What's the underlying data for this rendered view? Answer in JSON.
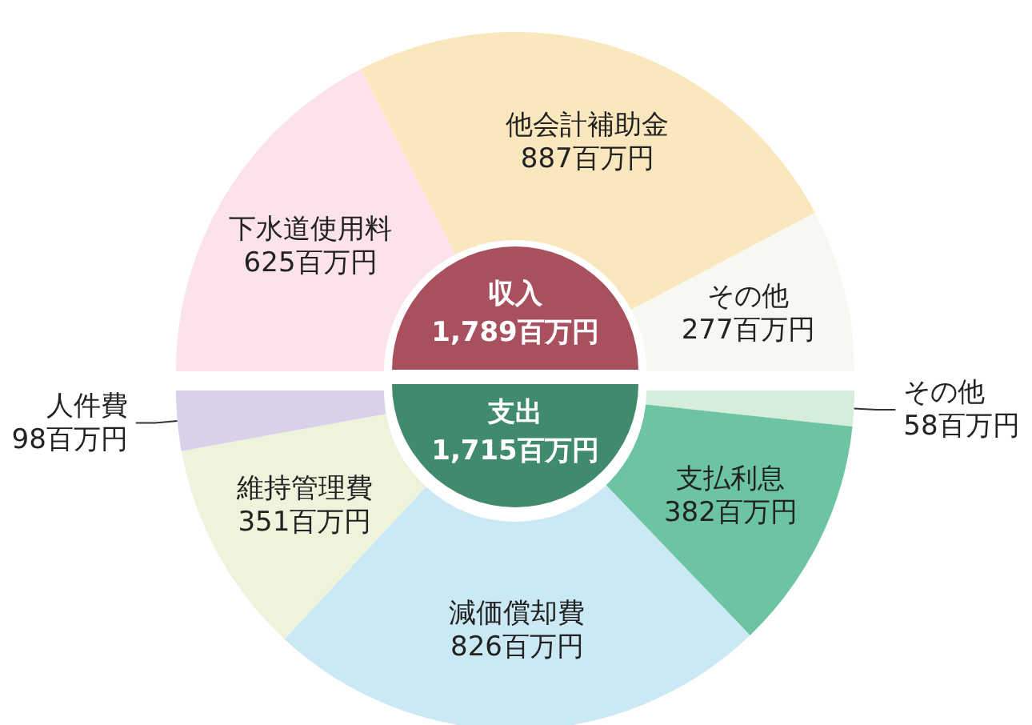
{
  "chart_data": [
    {
      "type": "donut",
      "title": "収入",
      "subtitle": "1,789百万円",
      "categories": [
        "下水道使用料",
        "他会計補助金",
        "その他"
      ],
      "values": [
        625,
        887,
        277
      ],
      "value_labels": [
        "625百万円",
        "887百万円",
        "277百万円"
      ],
      "colors": [
        "#fbe2ec",
        "#fbe7bd",
        "#f8f8f3"
      ],
      "legend": false
    },
    {
      "type": "donut",
      "title": "支出",
      "subtitle": "1,715百万円",
      "categories": [
        "その他",
        "支払利息",
        "減価償却費",
        "維持管理費",
        "人件費"
      ],
      "values": [
        58,
        382,
        826,
        351,
        98
      ],
      "value_labels": [
        "58百万円",
        "382百万円",
        "826百万円",
        "351百万円",
        "98百万円"
      ],
      "colors": [
        "#d6eddb",
        "#6cc4a3",
        "#cbe9f4",
        "#eef3dc",
        "#d9d0ea"
      ],
      "legend": false
    }
  ]
}
